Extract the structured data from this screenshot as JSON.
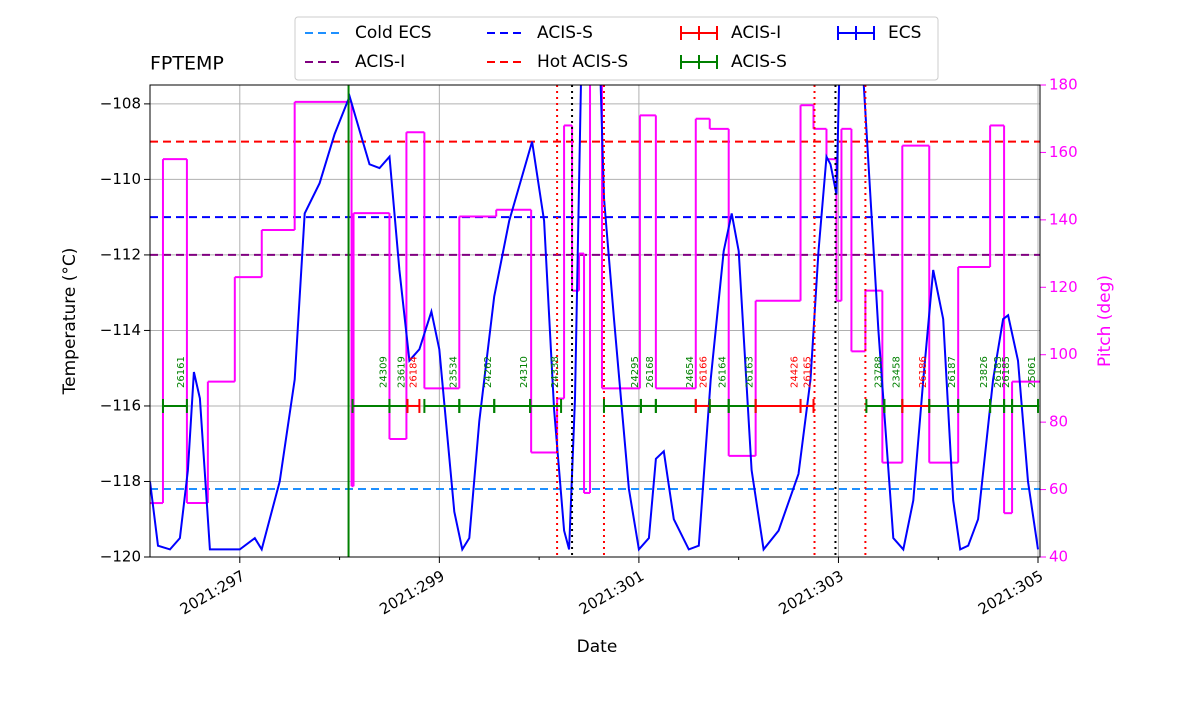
{
  "chart_data": {
    "type": "line",
    "title": "FPTEMP",
    "xlabel": "Date",
    "ylabel": "Temperature (°C)",
    "y2label": "Pitch (deg)",
    "xlim": [
      296.1,
      305.02
    ],
    "ylim": [
      -120,
      -107.5
    ],
    "y2lim": [
      40,
      180
    ],
    "xticks": [
      {
        "value": 297,
        "label": "2021:297"
      },
      {
        "value": 299,
        "label": "2021:299"
      },
      {
        "value": 301,
        "label": "2021:301"
      },
      {
        "value": 303,
        "label": "2021:303"
      },
      {
        "value": 305,
        "label": "2021:305"
      }
    ],
    "xminorticks": [
      298,
      300,
      302,
      304
    ],
    "yticks": [
      {
        "value": -120,
        "label": "−120"
      },
      {
        "value": -118,
        "label": "−118"
      },
      {
        "value": -116,
        "label": "−116"
      },
      {
        "value": -114,
        "label": "−114"
      },
      {
        "value": -112,
        "label": "−112"
      },
      {
        "value": -110,
        "label": "−110"
      },
      {
        "value": -108,
        "label": "−108"
      }
    ],
    "y2ticks": [
      40,
      60,
      80,
      100,
      120,
      140,
      160,
      180
    ],
    "grid": true,
    "series": [
      {
        "color": "#0000ff",
        "x": [
          296.1,
          296.18,
          296.3,
          296.4,
          296.48,
          296.54,
          296.6,
          296.7,
          297.0,
          297.15,
          297.22,
          297.4,
          297.55,
          297.65,
          297.8,
          297.95,
          298.1,
          298.2,
          298.3,
          298.4,
          298.5,
          298.6,
          298.7,
          298.8,
          298.92,
          299.0,
          299.15,
          299.23,
          299.3,
          299.4,
          299.55,
          299.7,
          299.93,
          300.05,
          300.15,
          300.25,
          300.3,
          300.36,
          300.43,
          300.6,
          300.65,
          300.75,
          300.9,
          301.0,
          301.1,
          301.17,
          301.25,
          301.35,
          301.5,
          301.6,
          301.72,
          301.85,
          301.93,
          302.0,
          302.13,
          302.25,
          302.4,
          302.6,
          302.72,
          302.8,
          302.88,
          302.92,
          302.98,
          303.02,
          303.22,
          303.4,
          303.55,
          303.65,
          303.75,
          303.85,
          303.95,
          304.05,
          304.15,
          304.22,
          304.3,
          304.4,
          304.55,
          304.65,
          304.7,
          304.8,
          304.9,
          305.0
        ],
        "values": [
          -118.0,
          -119.7,
          -119.8,
          -119.5,
          -117.7,
          -115.1,
          -115.8,
          -119.8,
          -119.8,
          -119.5,
          -119.8,
          -118.0,
          -115.3,
          -110.9,
          -110.1,
          -108.8,
          -107.8,
          -108.7,
          -109.6,
          -109.7,
          -109.4,
          -112.4,
          -114.8,
          -114.5,
          -113.5,
          -114.5,
          -118.8,
          -119.8,
          -119.5,
          -116.4,
          -113.1,
          -111.1,
          -109.0,
          -111.1,
          -116.1,
          -119.3,
          -119.8,
          -115.8,
          -106,
          -106,
          -110.5,
          -113.7,
          -118.2,
          -119.8,
          -119.5,
          -117.4,
          -117.2,
          -119.0,
          -119.8,
          -119.7,
          -115.3,
          -111.9,
          -110.9,
          -111.9,
          -117.7,
          -119.8,
          -119.3,
          -117.8,
          -115.3,
          -111.9,
          -109.4,
          -109.6,
          -110.4,
          -106,
          -106,
          -114.0,
          -119.5,
          -119.8,
          -118.5,
          -115.3,
          -112.4,
          -113.7,
          -118.5,
          -119.8,
          -119.7,
          -119.0,
          -115.3,
          -113.7,
          -113.6,
          -114.8,
          -118.0,
          -119.8
        ]
      },
      {
        "color": "#ff00ff",
        "axis": "y2",
        "step": true,
        "x": [
          296.1,
          296.23,
          296.47,
          296.68,
          296.95,
          297.22,
          297.55,
          298.12,
          298.14,
          298.5,
          298.67,
          298.85,
          299.2,
          299.57,
          299.92,
          300.18,
          300.25,
          300.33,
          300.4,
          300.45,
          300.51,
          300.63,
          301.01,
          301.17,
          301.57,
          301.71,
          301.9,
          302.17,
          302.62,
          302.75,
          302.88,
          302.98,
          303.03,
          303.13,
          303.27,
          303.44,
          303.64,
          303.91,
          304.2,
          304.52,
          304.66,
          304.74
        ],
        "values": [
          56,
          158,
          56,
          92,
          123,
          137,
          175,
          61,
          142,
          75,
          166,
          90,
          141,
          143,
          71,
          87,
          168,
          119,
          130,
          59,
          182,
          90,
          171,
          90,
          170,
          167,
          70,
          116,
          174,
          167,
          158,
          116,
          167,
          101,
          119,
          68,
          162,
          68,
          126,
          168,
          53,
          92
        ]
      }
    ],
    "limit_lines": [
      {
        "name": "Cold ECS",
        "value": -118.2,
        "color": "#1e90ff"
      },
      {
        "name": "ACIS-I",
        "value": -112,
        "color": "#800080"
      },
      {
        "name": "ACIS-S",
        "value": -111,
        "color": "#0000ff"
      },
      {
        "name": "Hot ACIS-S",
        "value": -109,
        "color": "#ff0000"
      }
    ],
    "observation_types": [
      {
        "name": "ACIS-I",
        "color": "#ff0000"
      },
      {
        "name": "ACIS-S",
        "color": "#008000"
      },
      {
        "name": "ECS",
        "color": "#0000ff"
      }
    ],
    "observation_level": -116,
    "observations": [
      {
        "obsid": "26161",
        "color": "#008000",
        "start": 296.23,
        "stop": 296.47
      },
      {
        "obsid": "24309",
        "color": "#008000",
        "start": 298.13,
        "stop": 298.5
      },
      {
        "obsid": "23619",
        "color": "#008000",
        "start": 298.5,
        "stop": 298.68
      },
      {
        "obsid": "26184",
        "color": "#ff0000",
        "start": 298.68,
        "stop": 298.8
      },
      {
        "obsid": "23534",
        "color": "#008000",
        "start": 298.85,
        "stop": 299.2
      },
      {
        "obsid": "24262",
        "color": "#008000",
        "start": 299.2,
        "stop": 299.55
      },
      {
        "obsid": "24310",
        "color": "#008000",
        "start": 299.55,
        "stop": 299.91
      },
      {
        "obsid": "24338",
        "color": "#008000",
        "start": 299.91,
        "stop": 300.22
      },
      {
        "obsid": "24295",
        "color": "#008000",
        "start": 300.65,
        "stop": 301.02
      },
      {
        "obsid": "26168",
        "color": "#008000",
        "start": 301.02,
        "stop": 301.17
      },
      {
        "obsid": "24654",
        "color": "#008000",
        "start": 301.17,
        "stop": 301.57
      },
      {
        "obsid": "26166",
        "color": "#ff0000",
        "start": 301.57,
        "stop": 301.71
      },
      {
        "obsid": "26164",
        "color": "#008000",
        "start": 301.71,
        "stop": 301.9
      },
      {
        "obsid": "26163",
        "color": "#008000",
        "start": 301.9,
        "stop": 302.17
      },
      {
        "obsid": "24426",
        "color": "#ff0000",
        "start": 302.17,
        "stop": 302.62
      },
      {
        "obsid": "26165",
        "color": "#ff0000",
        "start": 302.62,
        "stop": 302.75
      },
      {
        "obsid": "23788",
        "color": "#008000",
        "start": 303.28,
        "stop": 303.46
      },
      {
        "obsid": "23458",
        "color": "#008000",
        "start": 303.46,
        "stop": 303.64
      },
      {
        "obsid": "26186",
        "color": "#ff0000",
        "start": 303.64,
        "stop": 303.91
      },
      {
        "obsid": "26187",
        "color": "#008000",
        "start": 303.91,
        "stop": 304.2
      },
      {
        "obsid": "23826",
        "color": "#008000",
        "start": 304.2,
        "stop": 304.52
      },
      {
        "obsid": "26183",
        "color": "#008000",
        "start": 304.52,
        "stop": 304.66
      },
      {
        "obsid": "26185",
        "color": "#008000",
        "start": 304.66,
        "stop": 304.74
      },
      {
        "obsid": "25061",
        "color": "#008000",
        "start": 304.74,
        "stop": 305.0
      }
    ],
    "vertical_lines": [
      {
        "x": 298.09,
        "color": "#008000",
        "style": "solid"
      },
      {
        "x": 300.18,
        "color": "#ff0000",
        "style": "dotted"
      },
      {
        "x": 300.65,
        "color": "#ff0000",
        "style": "dotted"
      },
      {
        "x": 302.76,
        "color": "#ff0000",
        "style": "dotted"
      },
      {
        "x": 303.27,
        "color": "#ff0000",
        "style": "dotted"
      },
      {
        "x": 300.33,
        "color": "#000000",
        "style": "dotted"
      },
      {
        "x": 302.97,
        "color": "#000000",
        "style": "dotted"
      }
    ]
  }
}
